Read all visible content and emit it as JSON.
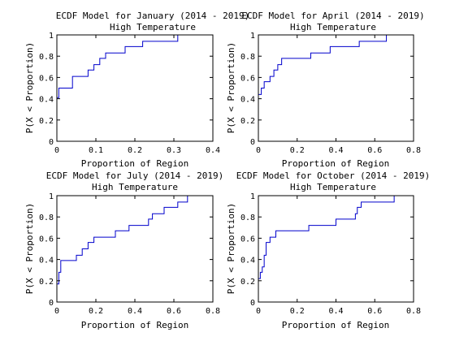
{
  "chart_data": [
    {
      "type": "line",
      "step": true,
      "title": "ECDF Model for January (2014 - 2019)",
      "subtitle": "High Temperature",
      "xlabel": "Proportion of Region",
      "ylabel": "P(X < Proportion)",
      "xlim": [
        0,
        0.4
      ],
      "ylim": [
        0,
        1
      ],
      "xticks": [
        "0",
        "0.1",
        "0.2",
        "0.3",
        "0.4"
      ],
      "yticks": [
        "0",
        "0.2",
        "0.4",
        "0.6",
        "0.8",
        "1"
      ],
      "grid": false,
      "color": "#0000cc",
      "x": [
        0,
        0.005,
        0.04,
        0.08,
        0.095,
        0.11,
        0.125,
        0.175,
        0.22,
        0.31,
        0.32
      ],
      "y": [
        0.41,
        0.5,
        0.61,
        0.67,
        0.72,
        0.78,
        0.83,
        0.89,
        0.94,
        1.0,
        1.0
      ]
    },
    {
      "type": "line",
      "step": true,
      "title": "ECDF Model for April (2014 - 2019)",
      "subtitle": "High Temperature",
      "xlabel": "Proportion of Region",
      "ylabel": "P(X < Proportion)",
      "xlim": [
        0,
        0.8
      ],
      "ylim": [
        0,
        1
      ],
      "xticks": [
        "0",
        "0.2",
        "0.4",
        "0.6",
        "0.8"
      ],
      "yticks": [
        "0",
        "0.2",
        "0.4",
        "0.6",
        "0.8",
        "1"
      ],
      "grid": false,
      "color": "#0000cc",
      "x": [
        0,
        0.015,
        0.03,
        0.06,
        0.08,
        0.1,
        0.12,
        0.27,
        0.37,
        0.52,
        0.66,
        0.67
      ],
      "y": [
        0.44,
        0.5,
        0.56,
        0.61,
        0.67,
        0.72,
        0.78,
        0.83,
        0.89,
        0.94,
        1.0,
        1.0
      ]
    },
    {
      "type": "line",
      "step": true,
      "title": "ECDF Model for July (2014 - 2019)",
      "subtitle": "High Temperature",
      "xlabel": "Proportion of Region",
      "ylabel": "P(X < Proportion)",
      "xlim": [
        0,
        0.8
      ],
      "ylim": [
        0,
        1
      ],
      "xticks": [
        "0",
        "0.2",
        "0.4",
        "0.6",
        "0.8"
      ],
      "yticks": [
        "0",
        "0.2",
        "0.4",
        "0.6",
        "0.8",
        "1"
      ],
      "grid": false,
      "color": "#0000cc",
      "x": [
        0,
        0.01,
        0.02,
        0.1,
        0.13,
        0.16,
        0.19,
        0.3,
        0.37,
        0.47,
        0.49,
        0.55,
        0.62,
        0.67,
        0.68
      ],
      "y": [
        0.17,
        0.28,
        0.39,
        0.44,
        0.5,
        0.56,
        0.61,
        0.67,
        0.72,
        0.78,
        0.83,
        0.89,
        0.94,
        1.0,
        1.0
      ]
    },
    {
      "type": "line",
      "step": true,
      "title": "ECDF Model for October (2014 - 2019)",
      "subtitle": "High Temperature",
      "xlabel": "Proportion of Region",
      "ylabel": "P(X < Proportion)",
      "xlim": [
        0,
        0.8
      ],
      "ylim": [
        0,
        1
      ],
      "xticks": [
        "0",
        "0.2",
        "0.4",
        "0.6",
        "0.8"
      ],
      "yticks": [
        "0",
        "0.2",
        "0.4",
        "0.6",
        "0.8",
        "1"
      ],
      "grid": false,
      "color": "#0000cc",
      "x": [
        0,
        0.01,
        0.02,
        0.03,
        0.04,
        0.06,
        0.09,
        0.26,
        0.4,
        0.5,
        0.51,
        0.53,
        0.7,
        0.71
      ],
      "y": [
        0.22,
        0.28,
        0.33,
        0.44,
        0.56,
        0.61,
        0.67,
        0.72,
        0.78,
        0.83,
        0.89,
        0.94,
        1.0,
        1.0
      ]
    }
  ]
}
